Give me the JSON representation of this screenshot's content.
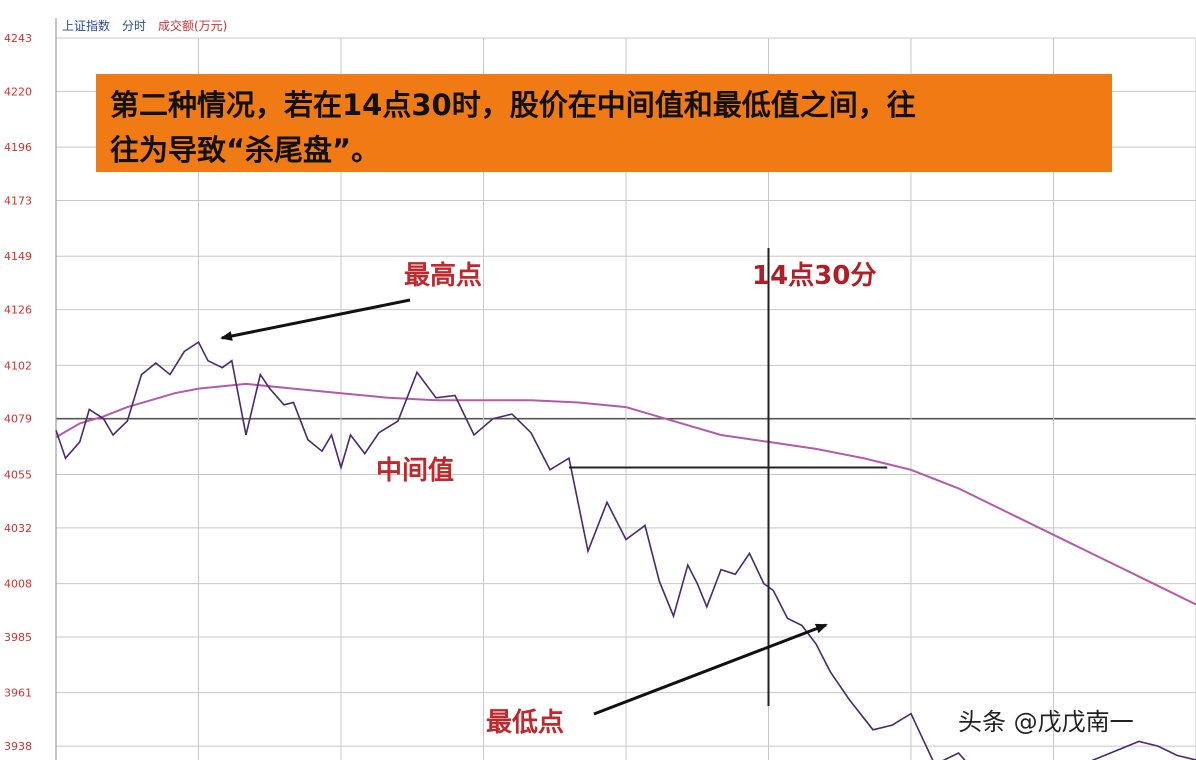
{
  "header": {
    "index_label": "上证指数",
    "mode_label": "分时",
    "volume_label": "成交额(万元)"
  },
  "callout": {
    "line1": "第二种情况，若在14点30时，股价在中间值和最低值之间，往",
    "line2": "往为导致“杀尾盘”。",
    "bg_color": "#f07a14"
  },
  "annotations": {
    "high": "最高点",
    "middle": "中间值",
    "low": "最低点",
    "time_marker": "14点30分"
  },
  "watermark": "头条 @戊戊南一",
  "colors": {
    "price_line": "#4a2a6e",
    "avg_line": "#b45aa6",
    "grid": "#c8c8c8",
    "axis_text": "#cc3333",
    "annotation": "#c0282d",
    "arrow": "#111111"
  },
  "chart_data": {
    "type": "line",
    "title": "",
    "xlabel": "",
    "ylabel": "",
    "y_ticks": [
      "4243",
      "4220",
      "4196",
      "4173",
      "4149",
      "4126",
      "4102",
      "4079",
      "4055",
      "4032",
      "4008",
      "3985",
      "3961",
      "3938"
    ],
    "ylim": [
      3932,
      4243
    ],
    "reference_price": 4079,
    "middle_value": 4058,
    "time_marker_minute": 150,
    "x_range_minutes": [
      0,
      240
    ],
    "grid": true,
    "series": [
      {
        "role": "price",
        "x": [
          0,
          2,
          5,
          7,
          10,
          12,
          15,
          18,
          21,
          24,
          27,
          30,
          32,
          35,
          37,
          40,
          43,
          45,
          48,
          50,
          53,
          56,
          58,
          60,
          62,
          65,
          68,
          72,
          76,
          80,
          84,
          88,
          92,
          96,
          100,
          104,
          108,
          112,
          116,
          120,
          124,
          127,
          130,
          133,
          135,
          137,
          140,
          143,
          146,
          149,
          151,
          154,
          157,
          160,
          163,
          167,
          172,
          176,
          180,
          185,
          190,
          196,
          203,
          210,
          216,
          222,
          228,
          232,
          236,
          240
        ],
        "y": [
          4074,
          4062,
          4069,
          4083,
          4079,
          4072,
          4078,
          4098,
          4103,
          4098,
          4108,
          4112,
          4104,
          4101,
          4104,
          4072,
          4098,
          4092,
          4085,
          4086,
          4070,
          4065,
          4072,
          4058,
          4072,
          4064,
          4073,
          4078,
          4099,
          4088,
          4089,
          4072,
          4079,
          4081,
          4073,
          4057,
          4062,
          4022,
          4043,
          4027,
          4033,
          4009,
          3994,
          4016,
          4008,
          3998,
          4014,
          4012,
          4021,
          4008,
          4005,
          3993,
          3990,
          3982,
          3970,
          3958,
          3945,
          3947,
          3952,
          3930,
          3935,
          3921,
          3918,
          3925,
          3930,
          3935,
          3940,
          3938,
          3934,
          3932
        ]
      },
      {
        "role": "average",
        "x": [
          0,
          5,
          10,
          15,
          20,
          25,
          30,
          40,
          50,
          60,
          70,
          80,
          90,
          100,
          110,
          120,
          130,
          140,
          150,
          160,
          170,
          180,
          190,
          200,
          210,
          220,
          230,
          240
        ],
        "y": [
          4071,
          4077,
          4080,
          4084,
          4087,
          4090,
          4092,
          4094,
          4092,
          4090,
          4088,
          4087,
          4087,
          4087,
          4086,
          4084,
          4078,
          4072,
          4069,
          4066,
          4062,
          4057,
          4049,
          4039,
          4029,
          4019,
          4009,
          3999
        ]
      }
    ]
  }
}
